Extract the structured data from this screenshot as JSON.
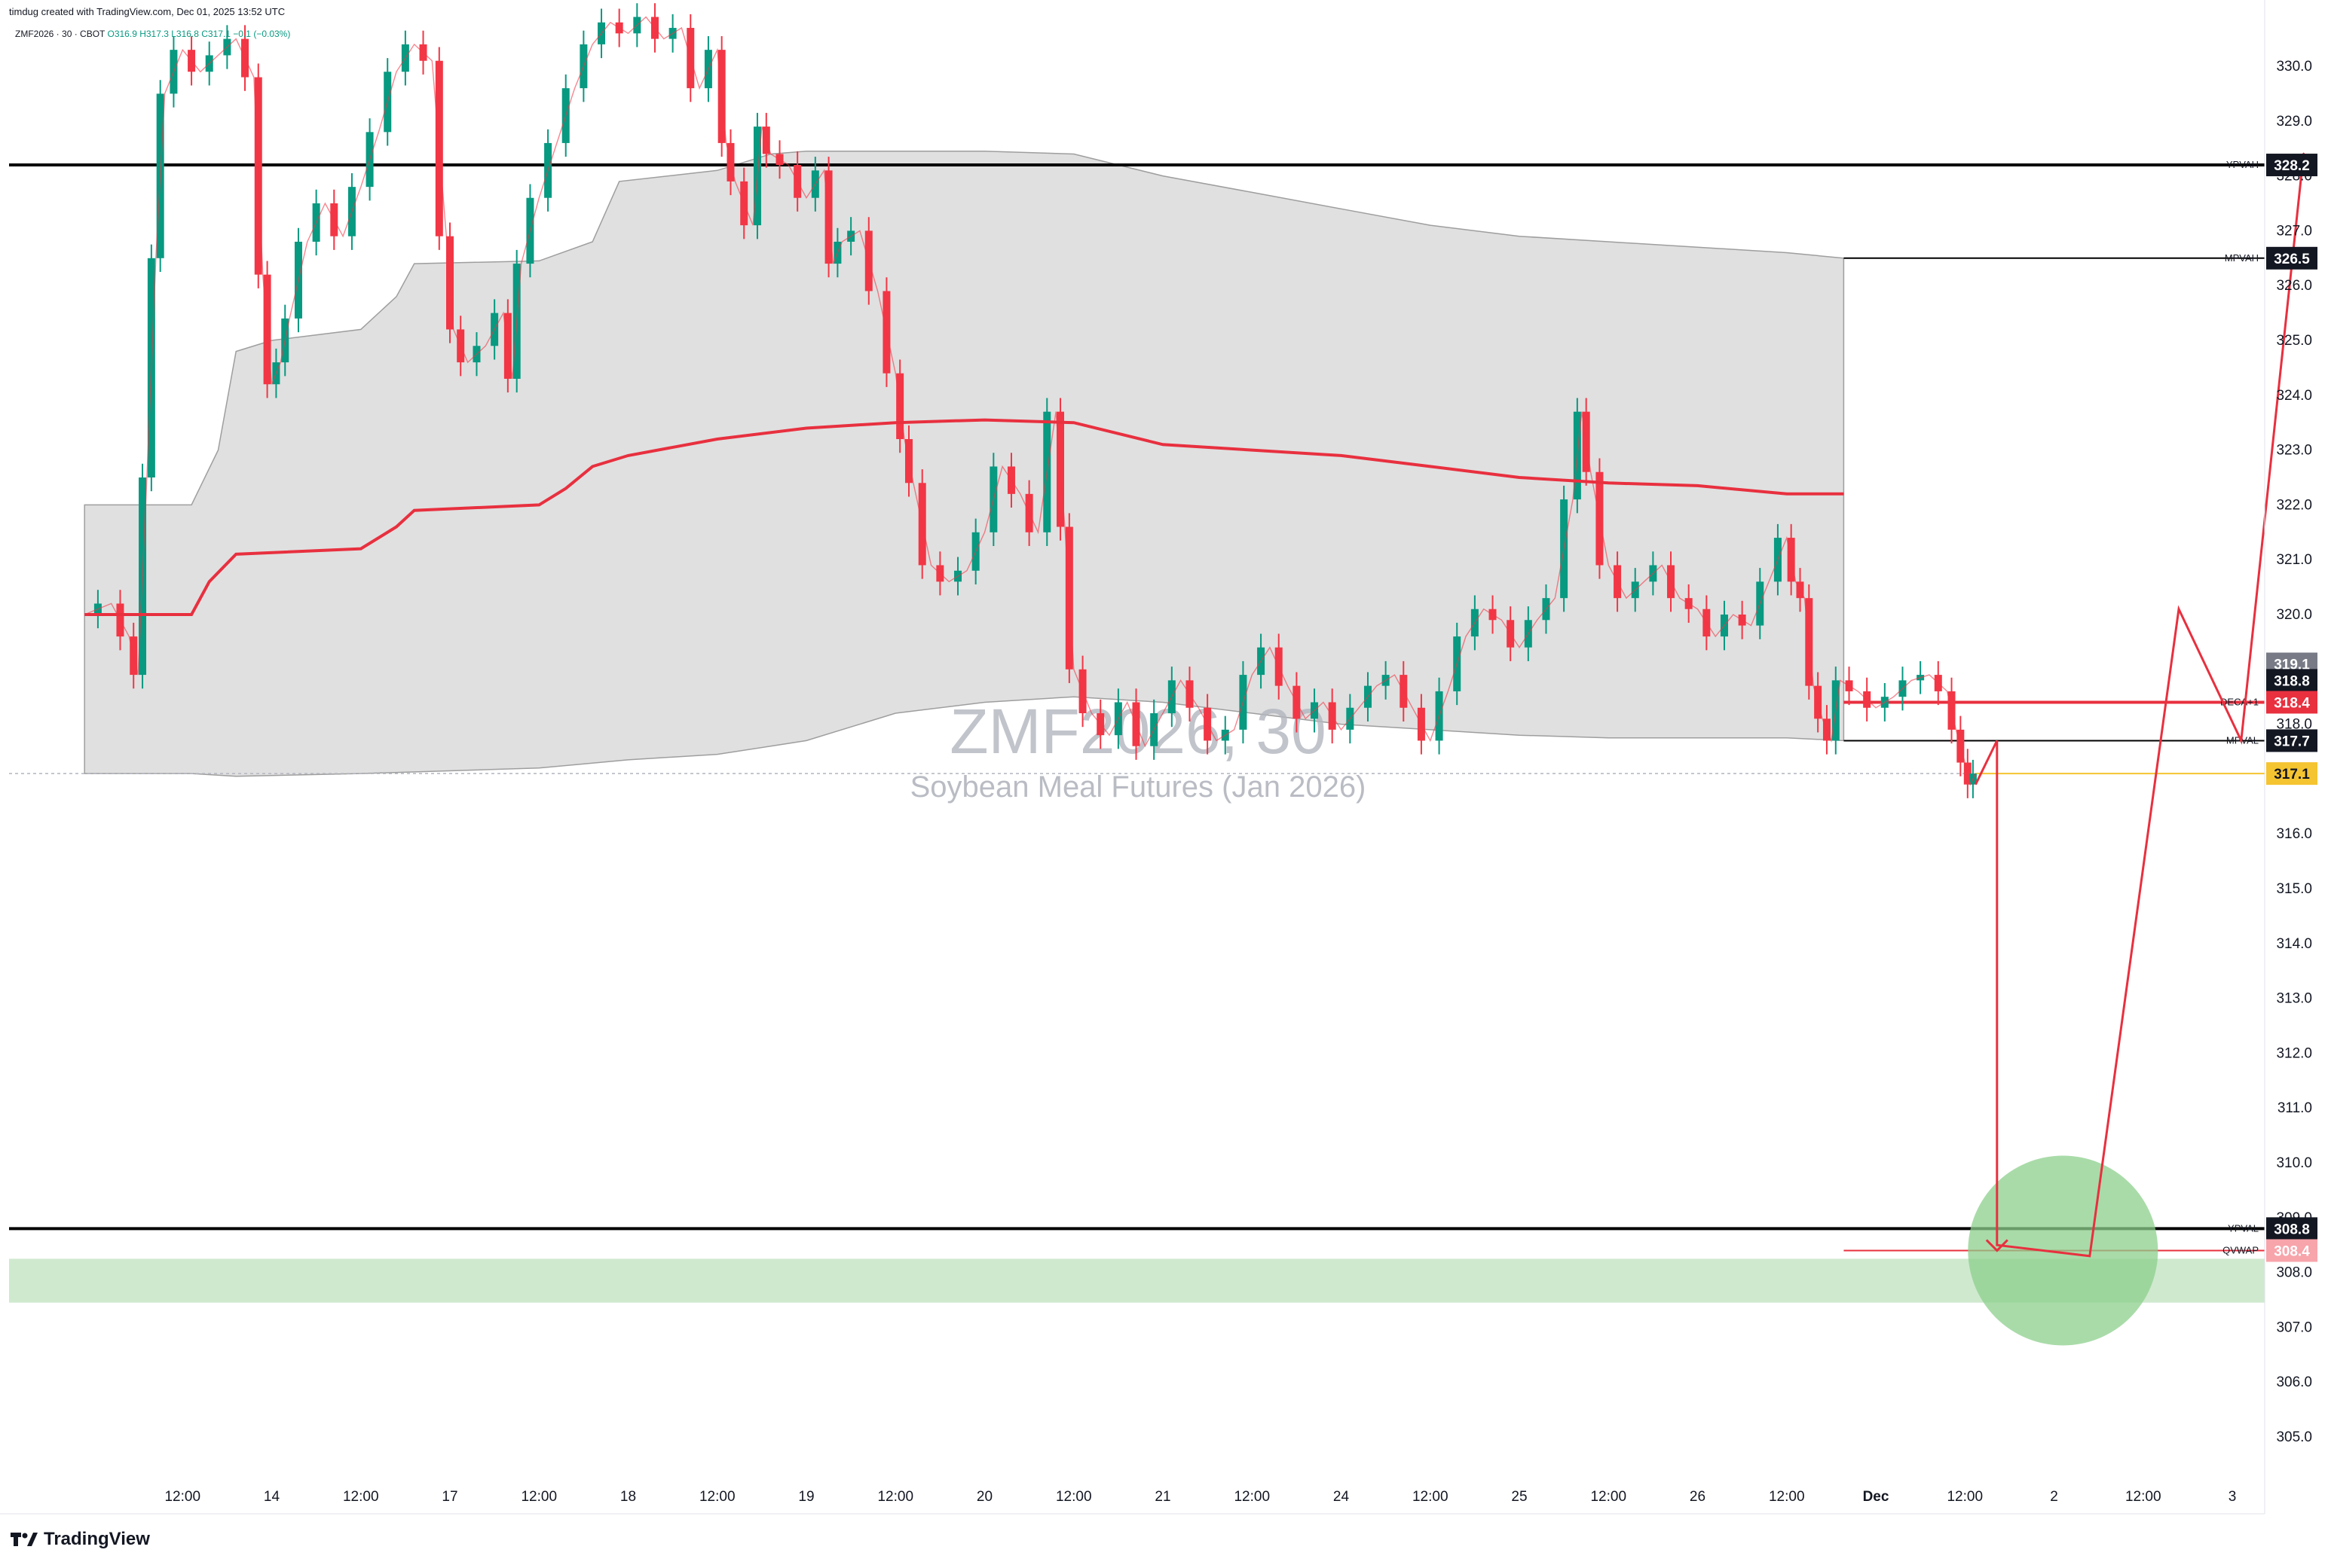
{
  "header": {
    "created_by": "timdug created with TradingView.com, Dec 01, 2025 13:52 UTC"
  },
  "legend": {
    "symbol_line": "ZMF2026 · 30 · CBOT",
    "ohlc": "O316.9 H317.3 L316.8 C317.1 −0.1 (−0.03%)"
  },
  "watermark": {
    "symbol": "ZMF2026, 30",
    "name": "Soybean Meal Futures (Jan 2026)"
  },
  "brand": {
    "name": "TradingView"
  },
  "colors": {
    "up": "#089981",
    "down": "#f23645",
    "poc": "#e8303f",
    "value_area_fill": "#e0e0e0",
    "target_zone": "#cfe9cf",
    "target_circle": "#8ccf8c",
    "last_price": "#f5c431"
  },
  "chart_data": {
    "type": "candlestick",
    "title": "ZMF2026, 30",
    "subtitle": "Soybean Meal Futures (Jan 2026)",
    "ylim": [
      304.5,
      331.0
    ],
    "y_ticks": [
      305.0,
      306.0,
      307.0,
      308.0,
      309.0,
      310.0,
      311.0,
      312.0,
      313.0,
      314.0,
      315.0,
      316.0,
      317.0,
      318.0,
      319.0,
      320.0,
      321.0,
      322.0,
      323.0,
      324.0,
      325.0,
      326.0,
      327.0,
      328.0,
      329.0,
      330.0
    ],
    "x_ticks": [
      {
        "label": "12:00",
        "x": 0.5
      },
      {
        "label": "14",
        "x": 1
      },
      {
        "label": "12:00",
        "x": 1.5
      },
      {
        "label": "17",
        "x": 2
      },
      {
        "label": "12:00",
        "x": 2.5
      },
      {
        "label": "18",
        "x": 3
      },
      {
        "label": "12:00",
        "x": 3.5
      },
      {
        "label": "19",
        "x": 4
      },
      {
        "label": "12:00",
        "x": 4.5
      },
      {
        "label": "20",
        "x": 5
      },
      {
        "label": "12:00",
        "x": 5.5
      },
      {
        "label": "21",
        "x": 6
      },
      {
        "label": "12:00",
        "x": 6.5
      },
      {
        "label": "24",
        "x": 7
      },
      {
        "label": "12:00",
        "x": 7.5
      },
      {
        "label": "25",
        "x": 8
      },
      {
        "label": "12:00",
        "x": 8.5
      },
      {
        "label": "26",
        "x": 9
      },
      {
        "label": "12:00",
        "x": 9.5
      },
      {
        "label": "Dec",
        "x": 10
      },
      {
        "label": "12:00",
        "x": 10.5
      },
      {
        "label": "2",
        "x": 11
      },
      {
        "label": "12:00",
        "x": 11.5
      },
      {
        "label": "3",
        "x": 12
      }
    ],
    "price_path": [
      [
        -0.05,
        320.0
      ],
      [
        0.1,
        320.2
      ],
      [
        0.2,
        319.6
      ],
      [
        0.25,
        318.9
      ],
      [
        0.3,
        322.5
      ],
      [
        0.35,
        326.5
      ],
      [
        0.4,
        329.5
      ],
      [
        0.5,
        330.3
      ],
      [
        0.6,
        329.9
      ],
      [
        0.7,
        330.2
      ],
      [
        0.8,
        330.5
      ],
      [
        0.9,
        329.8
      ],
      [
        0.95,
        326.2
      ],
      [
        1.0,
        324.2
      ],
      [
        1.05,
        324.6
      ],
      [
        1.1,
        325.4
      ],
      [
        1.2,
        326.8
      ],
      [
        1.3,
        327.5
      ],
      [
        1.4,
        326.9
      ],
      [
        1.5,
        327.8
      ],
      [
        1.6,
        328.8
      ],
      [
        1.7,
        329.9
      ],
      [
        1.8,
        330.4
      ],
      [
        1.9,
        330.1
      ],
      [
        1.98,
        326.9
      ],
      [
        2.02,
        325.2
      ],
      [
        2.1,
        324.6
      ],
      [
        2.2,
        324.9
      ],
      [
        2.3,
        325.5
      ],
      [
        2.35,
        324.3
      ],
      [
        2.4,
        326.4
      ],
      [
        2.5,
        327.6
      ],
      [
        2.6,
        328.6
      ],
      [
        2.7,
        329.6
      ],
      [
        2.8,
        330.4
      ],
      [
        2.9,
        330.8
      ],
      [
        3.0,
        330.6
      ],
      [
        3.1,
        330.9
      ],
      [
        3.2,
        330.5
      ],
      [
        3.3,
        330.7
      ],
      [
        3.4,
        329.6
      ],
      [
        3.5,
        330.3
      ],
      [
        3.55,
        328.6
      ],
      [
        3.6,
        327.9
      ],
      [
        3.7,
        327.1
      ],
      [
        3.75,
        328.9
      ],
      [
        3.8,
        328.4
      ],
      [
        3.9,
        328.2
      ],
      [
        4.0,
        327.6
      ],
      [
        4.1,
        328.1
      ],
      [
        4.15,
        326.4
      ],
      [
        4.2,
        326.8
      ],
      [
        4.3,
        327.0
      ],
      [
        4.4,
        325.9
      ],
      [
        4.5,
        324.4
      ],
      [
        4.55,
        323.2
      ],
      [
        4.6,
        322.4
      ],
      [
        4.7,
        320.9
      ],
      [
        4.8,
        320.6
      ],
      [
        4.9,
        320.8
      ],
      [
        5.0,
        321.5
      ],
      [
        5.1,
        322.7
      ],
      [
        5.2,
        322.2
      ],
      [
        5.3,
        321.5
      ],
      [
        5.4,
        323.7
      ],
      [
        5.45,
        321.6
      ],
      [
        5.5,
        319.0
      ],
      [
        5.6,
        318.2
      ],
      [
        5.7,
        317.8
      ],
      [
        5.8,
        318.4
      ],
      [
        5.9,
        317.6
      ],
      [
        6.0,
        318.2
      ],
      [
        6.1,
        318.8
      ],
      [
        6.2,
        318.3
      ],
      [
        6.3,
        317.7
      ],
      [
        6.4,
        317.9
      ],
      [
        6.5,
        318.9
      ],
      [
        6.6,
        319.4
      ],
      [
        6.7,
        318.7
      ],
      [
        6.8,
        318.1
      ],
      [
        6.9,
        318.4
      ],
      [
        7.0,
        317.9
      ],
      [
        7.1,
        318.3
      ],
      [
        7.2,
        318.7
      ],
      [
        7.3,
        318.9
      ],
      [
        7.4,
        318.3
      ],
      [
        7.5,
        317.7
      ],
      [
        7.6,
        318.6
      ],
      [
        7.7,
        319.6
      ],
      [
        7.8,
        320.1
      ],
      [
        7.9,
        319.9
      ],
      [
        8.0,
        319.4
      ],
      [
        8.1,
        319.9
      ],
      [
        8.2,
        320.3
      ],
      [
        8.3,
        322.1
      ],
      [
        8.35,
        323.7
      ],
      [
        8.4,
        322.6
      ],
      [
        8.5,
        320.9
      ],
      [
        8.6,
        320.3
      ],
      [
        8.7,
        320.6
      ],
      [
        8.8,
        320.9
      ],
      [
        8.9,
        320.3
      ],
      [
        9.0,
        320.1
      ],
      [
        9.1,
        319.6
      ],
      [
        9.2,
        320.0
      ],
      [
        9.3,
        319.8
      ],
      [
        9.4,
        320.6
      ],
      [
        9.5,
        321.4
      ],
      [
        9.55,
        320.6
      ],
      [
        9.6,
        320.3
      ],
      [
        9.65,
        318.7
      ],
      [
        9.7,
        318.1
      ],
      [
        9.75,
        317.7
      ],
      [
        9.8,
        318.8
      ],
      [
        9.9,
        318.6
      ],
      [
        10.0,
        318.3
      ],
      [
        10.1,
        318.5
      ],
      [
        10.2,
        318.8
      ],
      [
        10.3,
        318.9
      ],
      [
        10.4,
        318.6
      ],
      [
        10.45,
        317.9
      ],
      [
        10.5,
        317.3
      ],
      [
        10.53,
        316.9
      ],
      [
        10.56,
        317.1
      ]
    ],
    "poc_path": [
      [
        -0.05,
        320.0
      ],
      [
        0.55,
        320.0
      ],
      [
        0.65,
        320.6
      ],
      [
        0.8,
        321.1
      ],
      [
        1.5,
        321.2
      ],
      [
        1.7,
        321.6
      ],
      [
        1.8,
        321.9
      ],
      [
        2.5,
        322.0
      ],
      [
        2.65,
        322.3
      ],
      [
        2.8,
        322.7
      ],
      [
        3.0,
        322.9
      ],
      [
        3.5,
        323.2
      ],
      [
        4.0,
        323.4
      ],
      [
        4.5,
        323.5
      ],
      [
        5.0,
        323.55
      ],
      [
        5.5,
        323.5
      ],
      [
        6.0,
        323.1
      ],
      [
        6.5,
        323.0
      ],
      [
        7.0,
        322.9
      ],
      [
        7.5,
        322.7
      ],
      [
        8.0,
        322.5
      ],
      [
        8.5,
        322.4
      ],
      [
        9.0,
        322.35
      ],
      [
        9.5,
        322.2
      ],
      [
        9.82,
        322.2
      ]
    ],
    "va_upper_path": [
      [
        -0.05,
        322.0
      ],
      [
        0.55,
        322.0
      ],
      [
        0.7,
        323.0
      ],
      [
        0.8,
        324.8
      ],
      [
        1.0,
        325.0
      ],
      [
        1.5,
        325.2
      ],
      [
        1.7,
        325.8
      ],
      [
        1.8,
        326.4
      ],
      [
        2.5,
        326.45
      ],
      [
        2.8,
        326.8
      ],
      [
        2.95,
        327.9
      ],
      [
        3.5,
        328.1
      ],
      [
        3.8,
        328.4
      ],
      [
        4.0,
        328.45
      ],
      [
        5.0,
        328.45
      ],
      [
        5.5,
        328.4
      ],
      [
        6.0,
        328.0
      ],
      [
        6.5,
        327.7
      ],
      [
        7.0,
        327.4
      ],
      [
        7.5,
        327.1
      ],
      [
        8.0,
        326.9
      ],
      [
        8.5,
        326.8
      ],
      [
        9.0,
        326.7
      ],
      [
        9.5,
        326.6
      ],
      [
        9.82,
        326.5
      ]
    ],
    "va_lower_path": [
      [
        -0.05,
        317.1
      ],
      [
        0.55,
        317.1
      ],
      [
        0.8,
        317.05
      ],
      [
        1.5,
        317.1
      ],
      [
        2.5,
        317.2
      ],
      [
        3.0,
        317.35
      ],
      [
        3.5,
        317.45
      ],
      [
        3.8,
        317.6
      ],
      [
        4.0,
        317.7
      ],
      [
        4.5,
        318.2
      ],
      [
        5.0,
        318.4
      ],
      [
        5.5,
        318.5
      ],
      [
        6.0,
        318.4
      ],
      [
        6.5,
        318.2
      ],
      [
        7.0,
        318.0
      ],
      [
        7.5,
        317.9
      ],
      [
        8.0,
        317.8
      ],
      [
        8.5,
        317.75
      ],
      [
        9.0,
        317.75
      ],
      [
        9.5,
        317.75
      ],
      [
        9.82,
        317.7
      ]
    ],
    "levels": [
      {
        "label": "YPVAH",
        "value": 328.2,
        "tag": "328.2",
        "style": "black"
      },
      {
        "label": "MPVAH",
        "value": 326.5,
        "tag": "326.5",
        "style": "black"
      },
      {
        "label": "DECA+1",
        "value": 318.4,
        "tag": "318.4",
        "style": "red"
      },
      {
        "label": "MPVAL",
        "value": 317.7,
        "tag": "317.7",
        "style": "black"
      },
      {
        "label": "YPVAL",
        "value": 308.8,
        "tag": "308.8",
        "style": "black"
      },
      {
        "label": "QVWAP",
        "value": 308.4,
        "tag": "308.4",
        "style": "redlight"
      }
    ],
    "extra_tags": [
      {
        "value": 319.1,
        "tag": "319.1",
        "style": "grey"
      },
      {
        "value": 318.8,
        "tag": "318.8",
        "style": "black"
      },
      {
        "value": 317.1,
        "tag": "317.1",
        "style": "yellow"
      }
    ],
    "target_zone": {
      "y_top": 308.25,
      "y_bottom": 307.45
    },
    "target_circle": {
      "x": 11.05,
      "y": 308.4
    },
    "projection_path": [
      [
        10.56,
        316.9
      ],
      [
        10.68,
        317.7
      ],
      [
        10.68,
        308.5
      ],
      [
        10.76,
        308.3
      ],
      [
        10.68,
        308.5
      ],
      [
        10.68,
        317.7
      ],
      [
        10.56,
        316.9
      ],
      [
        10.68,
        317.7
      ],
      [
        10.68,
        308.5
      ]
    ],
    "scenario_path": [
      [
        10.68,
        317.7
      ],
      [
        10.68,
        308.5
      ],
      [
        11.2,
        308.3
      ],
      [
        11.7,
        320.1
      ],
      [
        12.05,
        317.7
      ],
      [
        12.4,
        328.4
      ]
    ],
    "last_price": 317.1
  }
}
